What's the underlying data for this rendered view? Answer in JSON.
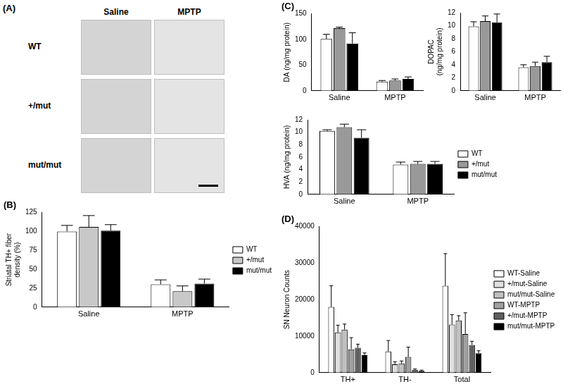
{
  "panel_a": {
    "label": "(A)",
    "columns": [
      "Saline",
      "MPTP"
    ],
    "rows": [
      "WT",
      "+/mut",
      "mut/mut"
    ]
  },
  "chart_data": [
    {
      "type": "bar",
      "title": "(B)",
      "categories": [
        "Saline",
        "MPTP"
      ],
      "y_label": [
        "Striatal TH+ fiber",
        "density (%)"
      ],
      "series": [
        {
          "name": "WT",
          "color": "#ffffff",
          "values": [
            100,
            30
          ],
          "error": [
            8,
            6
          ]
        },
        {
          "name": "+/mut",
          "color": "#c8c8c8",
          "values": [
            106,
            21
          ],
          "error": [
            15,
            7
          ]
        },
        {
          "name": "mut/mut",
          "color": "#000000",
          "values": [
            101,
            31
          ],
          "error": [
            8,
            6
          ]
        }
      ],
      "ylim": [
        0,
        125
      ],
      "yticks": [
        0,
        25,
        50,
        75,
        100,
        125
      ],
      "grid": false,
      "legend": "right"
    },
    {
      "type": "bar",
      "title": "(C)",
      "categories": [
        "Saline",
        "MPTP"
      ],
      "y_label": "DA (ng/mg protein)",
      "series": [
        {
          "name": "WT",
          "color": "#ffffff",
          "values": [
            101,
            18
          ],
          "error": [
            9,
            2
          ]
        },
        {
          "name": "+/mut",
          "color": "#999999",
          "values": [
            122,
            20
          ],
          "error": [
            2,
            3
          ]
        },
        {
          "name": "mut/mut",
          "color": "#000000",
          "values": [
            92,
            23
          ],
          "error": [
            21,
            4
          ]
        }
      ],
      "ylim": [
        0,
        150
      ],
      "yticks": [
        0,
        50,
        100,
        150
      ],
      "grid": false
    },
    {
      "type": "bar",
      "categories": [
        "Saline",
        "MPTP"
      ],
      "y_label": [
        "DOPAC",
        "(ng/mg protein)"
      ],
      "series": [
        {
          "name": "WT",
          "color": "#ffffff",
          "values": [
            9.9,
            3.6
          ],
          "error": [
            0.7,
            0.4
          ]
        },
        {
          "name": "+/mut",
          "color": "#999999",
          "values": [
            10.7,
            3.8
          ],
          "error": [
            0.8,
            0.6
          ]
        },
        {
          "name": "mut/mut",
          "color": "#000000",
          "values": [
            10.5,
            4.4
          ],
          "error": [
            1.3,
            0.9
          ]
        }
      ],
      "ylim": [
        0,
        12
      ],
      "yticks": [
        0,
        2,
        4,
        6,
        8,
        10,
        12
      ],
      "grid": false
    },
    {
      "type": "bar",
      "categories": [
        "Saline",
        "MPTP"
      ],
      "y_label": "HVA (ng/mg protein)",
      "series": [
        {
          "name": "WT",
          "color": "#ffffff",
          "values": [
            10.2,
            4.8
          ],
          "error": [
            0.2,
            0.4
          ]
        },
        {
          "name": "+/mut",
          "color": "#999999",
          "values": [
            10.8,
            4.9
          ],
          "error": [
            0.5,
            0.4
          ]
        },
        {
          "name": "mut/mut",
          "color": "#000000",
          "values": [
            9.1,
            4.9
          ],
          "error": [
            1.3,
            0.4
          ]
        }
      ],
      "ylim": [
        0,
        12
      ],
      "yticks": [
        0,
        2,
        4,
        6,
        8,
        10,
        12
      ],
      "grid": false,
      "legend": "right"
    },
    {
      "type": "bar",
      "title": "(D)",
      "categories": [
        "TH+",
        "TH-",
        "Total"
      ],
      "y_label": "SN Neuron Counts",
      "series": [
        {
          "name": "WT-Saline",
          "color": "#ffffff",
          "values": [
            18000,
            5800,
            23800
          ],
          "error": [
            5800,
            3000,
            8800
          ]
        },
        {
          "name": "+/mut-Saline",
          "color": "#e0e0e0",
          "values": [
            11000,
            2300,
            13200
          ],
          "error": [
            2000,
            700,
            2700
          ]
        },
        {
          "name": "mut/mut-Saline",
          "color": "#c0c0c0",
          "values": [
            11800,
            2500,
            14300
          ],
          "error": [
            1500,
            700,
            1300
          ]
        },
        {
          "name": "WT-MPTP",
          "color": "#a0a0a0",
          "values": [
            6400,
            4300,
            10600
          ],
          "error": [
            3200,
            2700,
            5800
          ]
        },
        {
          "name": "+/mut-MPTP",
          "color": "#606060",
          "values": [
            6800,
            800,
            7600
          ],
          "error": [
            1000,
            200,
            1000
          ]
        },
        {
          "name": "mut/mut-MPTP",
          "color": "#000000",
          "values": [
            4800,
            500,
            5300
          ],
          "error": [
            600,
            200,
            700
          ]
        }
      ],
      "ylim": [
        0,
        40000
      ],
      "yticks": [
        0,
        10000,
        20000,
        30000,
        40000
      ],
      "grid": false,
      "legend": "right"
    }
  ]
}
